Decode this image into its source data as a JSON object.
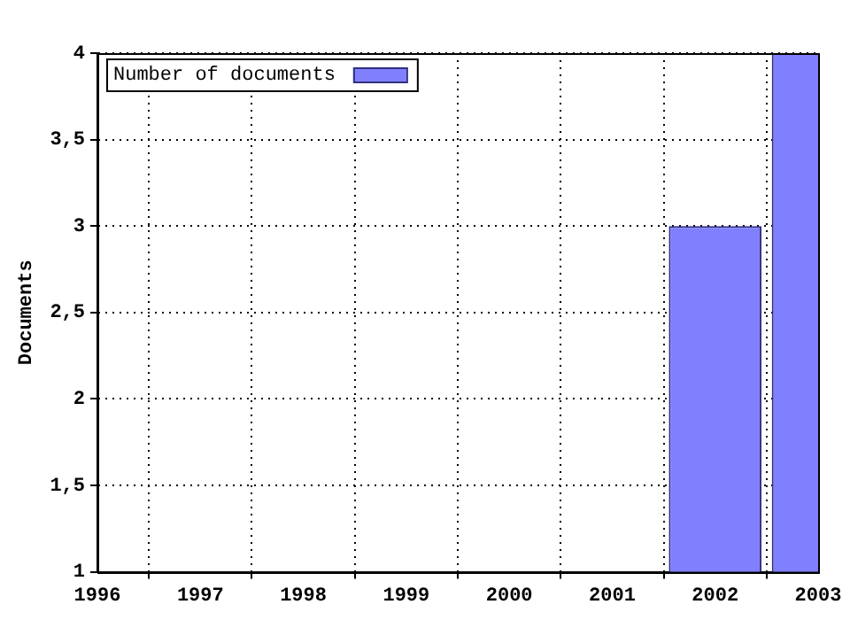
{
  "chart_data": {
    "type": "bar",
    "x": [
      2002,
      2003
    ],
    "series": [
      {
        "name": "Number of documents",
        "color": "#8080ff",
        "values": [
          3,
          4
        ]
      }
    ],
    "ylabel": "Documents",
    "xlim": [
      1996,
      2003
    ],
    "xticks": [
      1996,
      1997,
      1998,
      1999,
      2000,
      2001,
      2002,
      2003
    ],
    "ylim": [
      1,
      4
    ],
    "yticks": [
      1,
      {
        "value": 1.5,
        "label": "1,5"
      },
      2,
      {
        "value": 2.5,
        "label": "2,5"
      },
      3,
      {
        "value": 3.5,
        "label": "3,5"
      },
      4
    ],
    "grid": true,
    "legend": "top left"
  }
}
